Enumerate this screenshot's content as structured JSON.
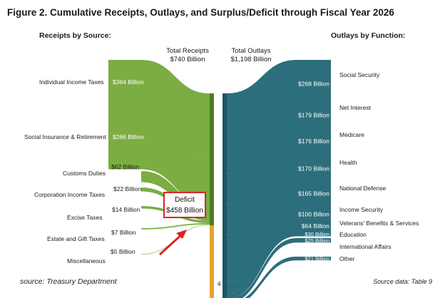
{
  "title": "Figure 2. Cumulative Receipts, Outlays, and Surplus/Deficit through Fiscal Year 2026",
  "receipts_header": "Receipts by Source:",
  "outlays_header": "Outlays by Function:",
  "total_receipts": {
    "label": "Total Receipts",
    "value": "$740 Billion"
  },
  "total_outlays": {
    "label": "Total Outlays",
    "value": "$1,198 Billion"
  },
  "deficit": {
    "label": "Deficit",
    "value": "$458 Billion"
  },
  "footer": {
    "source": "source: Treasury Department",
    "page": "4",
    "source_data": "Source data: Table 9"
  },
  "colors": {
    "receipts": "#7bad43",
    "receipts_bar": "#4e7d22",
    "outlays": "#2d6e7c",
    "outlays_bar": "#1e5562",
    "deficit_bar": "#e4a62a",
    "deficit_border": "#d9252b",
    "arrow": "#d9252b"
  },
  "chart_data": {
    "type": "sankey",
    "title": "Figure 2. Cumulative Receipts, Outlays, and Surplus/Deficit through Fiscal Year 2026",
    "units": "Billion dollars",
    "receipts": [
      {
        "name": "Individual Income Taxes",
        "value": 364,
        "label": "$364 Billion"
      },
      {
        "name": "Social Insurance & Retirement",
        "value": 266,
        "label": "$266 Billion"
      },
      {
        "name": "Customs Duties",
        "value": 62,
        "label": "$62 Billion"
      },
      {
        "name": "Corporation Income Taxes",
        "value": 22,
        "label": "$22 Billion"
      },
      {
        "name": "Excise Taxes",
        "value": 14,
        "label": "$14 Billion"
      },
      {
        "name": "Estate and Gift Taxes",
        "value": 7,
        "label": "$7 Billion"
      },
      {
        "name": "Miscellaneous",
        "value": 5,
        "label": "$5 Billion"
      }
    ],
    "outlays": [
      {
        "name": "Social Security",
        "value": 268,
        "label": "$268 Billion"
      },
      {
        "name": "Net Interest",
        "value": 179,
        "label": "$179 Billion"
      },
      {
        "name": "Medicare",
        "value": 176,
        "label": "$176 Billion"
      },
      {
        "name": "Health",
        "value": 170,
        "label": "$170 Billion"
      },
      {
        "name": "National Defense",
        "value": 165,
        "label": "$165 Billion"
      },
      {
        "name": "Income Security",
        "value": 100,
        "label": "$100 Billion"
      },
      {
        "name": "Veterans' Benefits & Services",
        "value": 64,
        "label": "$64 Billion"
      },
      {
        "name": "Education",
        "value": 30,
        "label": "$30 Billion"
      },
      {
        "name": "International Affairs",
        "value": 25,
        "label": "$25 Billion"
      },
      {
        "name": "Other",
        "value": 21,
        "label": "$21 Billion"
      }
    ],
    "total_receipts": 740,
    "total_outlays": 1198,
    "deficit": 458
  }
}
